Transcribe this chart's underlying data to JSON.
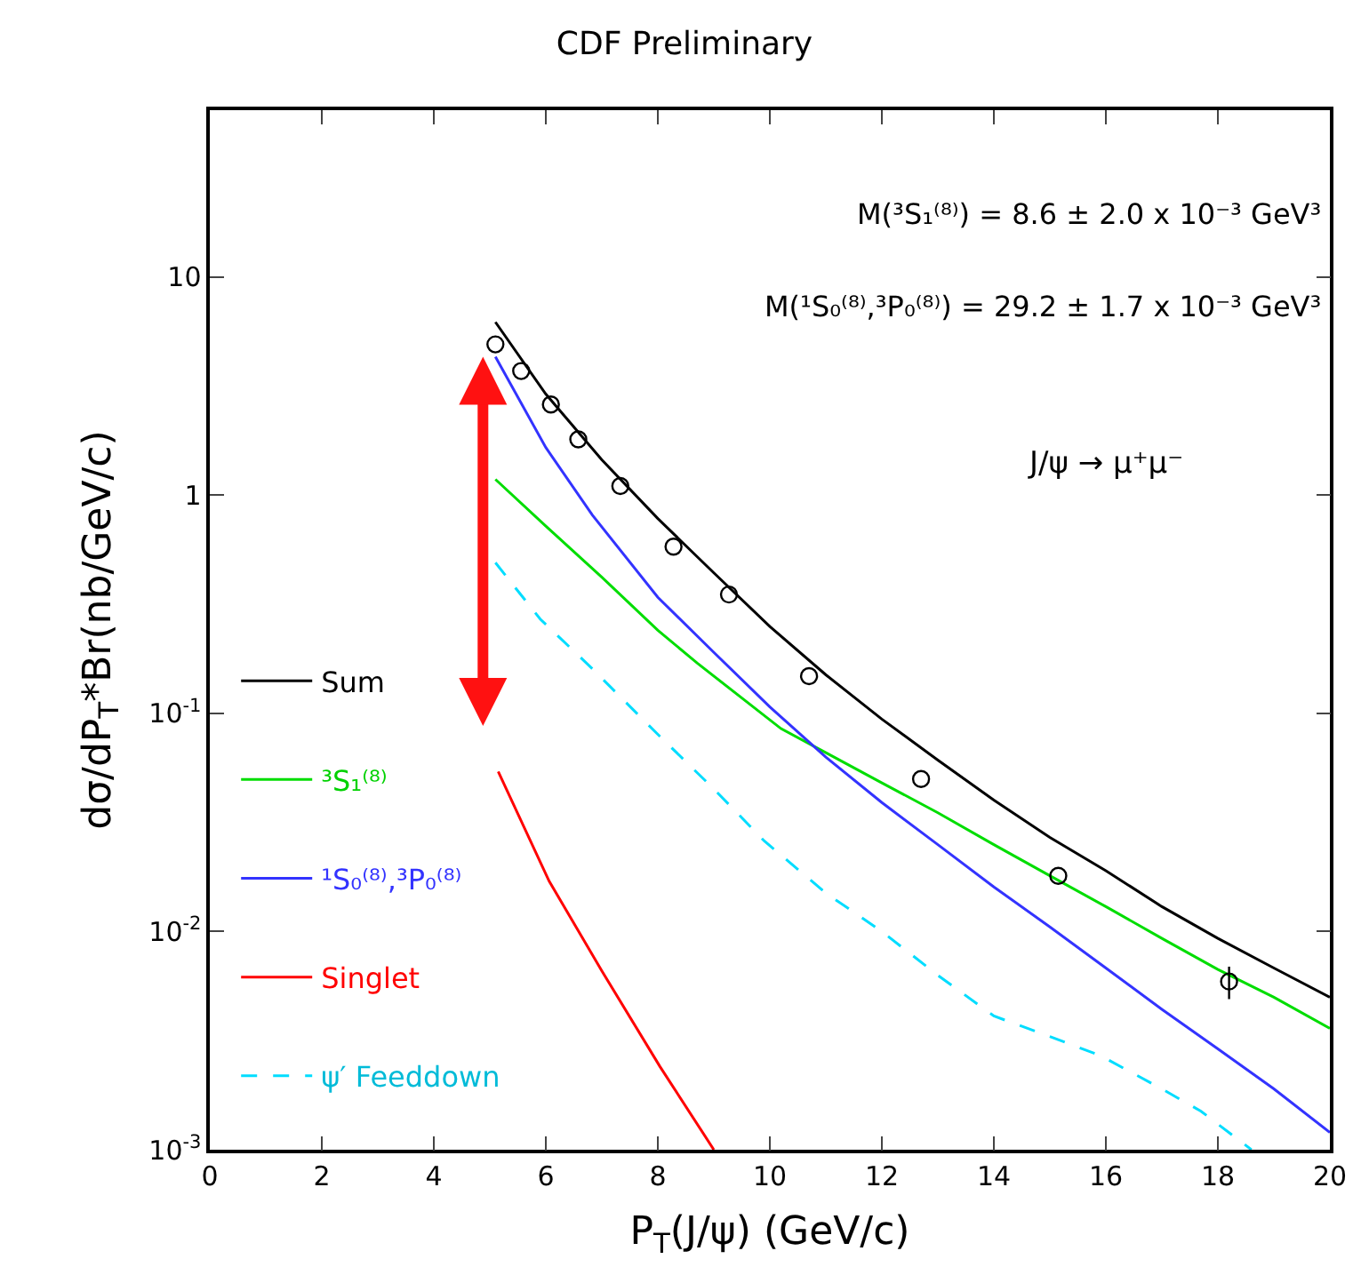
{
  "chart_data": {
    "type": "line",
    "title": "CDF Preliminary",
    "xlabel": "P$_{T}$(J/ψ) (GeV/c)",
    "ylabel": "dσ/dP$_{T}$*Br(nb/GeV/c)",
    "log": "y",
    "xlim": [
      0,
      20
    ],
    "ylim": [
      0.001,
      58
    ],
    "xticks": [
      0,
      2,
      4,
      6,
      8,
      10,
      12,
      14,
      16,
      18,
      20
    ],
    "yticks": [
      {
        "value": 0.001,
        "label": "10$^{-3}$"
      },
      {
        "value": 0.01,
        "label": "10$^{-2}$"
      },
      {
        "value": 0.1,
        "label": "10$^{-1}$"
      },
      {
        "value": 1,
        "label": "1"
      },
      {
        "value": 10,
        "label": "10"
      }
    ],
    "legend": "left",
    "series": [
      {
        "name": "Sum",
        "color": "#000000",
        "line_style": "solid",
        "x": [
          5.1,
          6,
          7,
          8,
          9,
          10,
          11,
          12,
          13,
          14,
          15,
          16,
          17,
          18,
          19,
          20
        ],
        "values": [
          6.2,
          2.9,
          1.45,
          0.78,
          0.44,
          0.25,
          0.15,
          0.094,
          0.061,
          0.04,
          0.027,
          0.019,
          0.013,
          0.0093,
          0.0068,
          0.005
        ]
      },
      {
        "name": "³S₁⁽⁸⁾",
        "color": "#00dd00",
        "line_style": "solid",
        "x": [
          5.1,
          6,
          7,
          8,
          8.7,
          10.2,
          11,
          12,
          13,
          14,
          15,
          16,
          17,
          18,
          19,
          20
        ],
        "values": [
          1.18,
          0.72,
          0.42,
          0.24,
          0.17,
          0.085,
          0.066,
          0.048,
          0.035,
          0.025,
          0.018,
          0.013,
          0.0093,
          0.0067,
          0.005,
          0.0036
        ]
      },
      {
        "name": "¹S₀⁽⁸⁾,³P₀⁽⁸⁾",
        "color": "#3333ff",
        "line_style": "solid",
        "x": [
          5.1,
          6,
          6.83,
          8,
          9,
          10,
          11,
          12,
          13,
          14,
          15,
          16,
          17,
          18,
          19,
          20
        ],
        "values": [
          4.3,
          1.65,
          0.81,
          0.34,
          0.19,
          0.107,
          0.063,
          0.039,
          0.025,
          0.016,
          0.0105,
          0.0068,
          0.0044,
          0.0029,
          0.0019,
          0.0012
        ]
      },
      {
        "name": "Singlet",
        "color": "#ff0000",
        "line_style": "solid",
        "x": [
          5.15,
          6.06,
          7.0,
          8.04,
          9.0
        ],
        "values": [
          0.054,
          0.017,
          0.0066,
          0.0024,
          0.001
        ]
      },
      {
        "name": "ψ′ Feeddown",
        "color": "#00ddff",
        "line_style": "dashed",
        "x": [
          5.1,
          5.9,
          6.83,
          8,
          9,
          9.9,
          11,
          12,
          13,
          14,
          15,
          15.9,
          17,
          17.7,
          18.6
        ],
        "values": [
          0.49,
          0.27,
          0.16,
          0.08,
          0.045,
          0.026,
          0.015,
          0.01,
          0.0063,
          0.0041,
          0.0033,
          0.0027,
          0.0019,
          0.0015,
          0.001
        ]
      },
      {
        "type": "scatter",
        "color": "#000000",
        "marker": "circle",
        "x": [
          5.1,
          5.56,
          6.09,
          6.58,
          7.33,
          8.28,
          9.27,
          10.7,
          12.7,
          15.15,
          18.2
        ],
        "values": [
          4.9,
          3.7,
          2.6,
          1.8,
          1.1,
          0.58,
          0.35,
          0.148,
          0.05,
          0.018,
          0.0059
        ],
        "errors": [
          null,
          null,
          null,
          null,
          null,
          null,
          null,
          null,
          null,
          null,
          0.001
        ]
      }
    ],
    "annotations": [
      "M(³S₁⁽⁸⁾) = 8.6 ± 2.0 x 10⁻³ GeV³",
      "M(¹S₀⁽⁸⁾,³P₀⁽⁸⁾) = 29.2 ± 1.7 x 10⁻³ GeV³",
      "J/ψ → μ⁺μ⁻"
    ]
  }
}
